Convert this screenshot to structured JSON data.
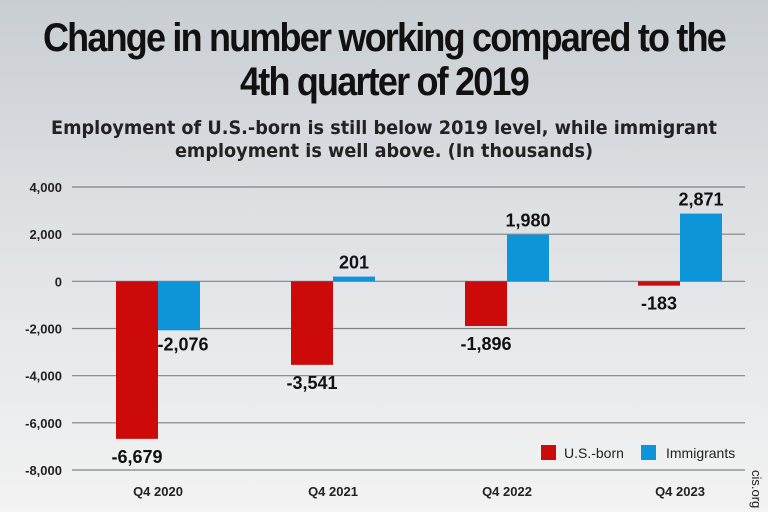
{
  "chart_data": {
    "type": "bar",
    "title": "Change in number working compared to the 4th quarter of 2019",
    "subtitle": "Employment of U.S.-born is still below 2019 level, while immigrant employment is well above. (In thousands)",
    "categories": [
      "Q4 2020",
      "Q4 2021",
      "Q4 2022",
      "Q4 2023"
    ],
    "series": [
      {
        "name": "U.S.-born",
        "color": "#cc0a0a",
        "values": [
          -6679,
          -3541,
          -1896,
          -183
        ],
        "labels": [
          "-6,679",
          "-3,541",
          "-1,896",
          "-183"
        ]
      },
      {
        "name": "Immigrants",
        "color": "#0e94d8",
        "values": [
          -2076,
          201,
          1980,
          2871
        ],
        "labels": [
          "-2,076",
          "201",
          "1,980",
          "2,871"
        ]
      }
    ],
    "ylim": [
      -8000,
      4000
    ],
    "yticks": [
      4000,
      2000,
      0,
      -2000,
      -4000,
      -6000,
      -8000
    ],
    "ytick_labels": [
      "4,000",
      "2,000",
      "0",
      "-2,000",
      "-4,000",
      "-6,000",
      "-8,000"
    ],
    "grid": true,
    "legend": "bottom-right",
    "source": "cis.org"
  }
}
